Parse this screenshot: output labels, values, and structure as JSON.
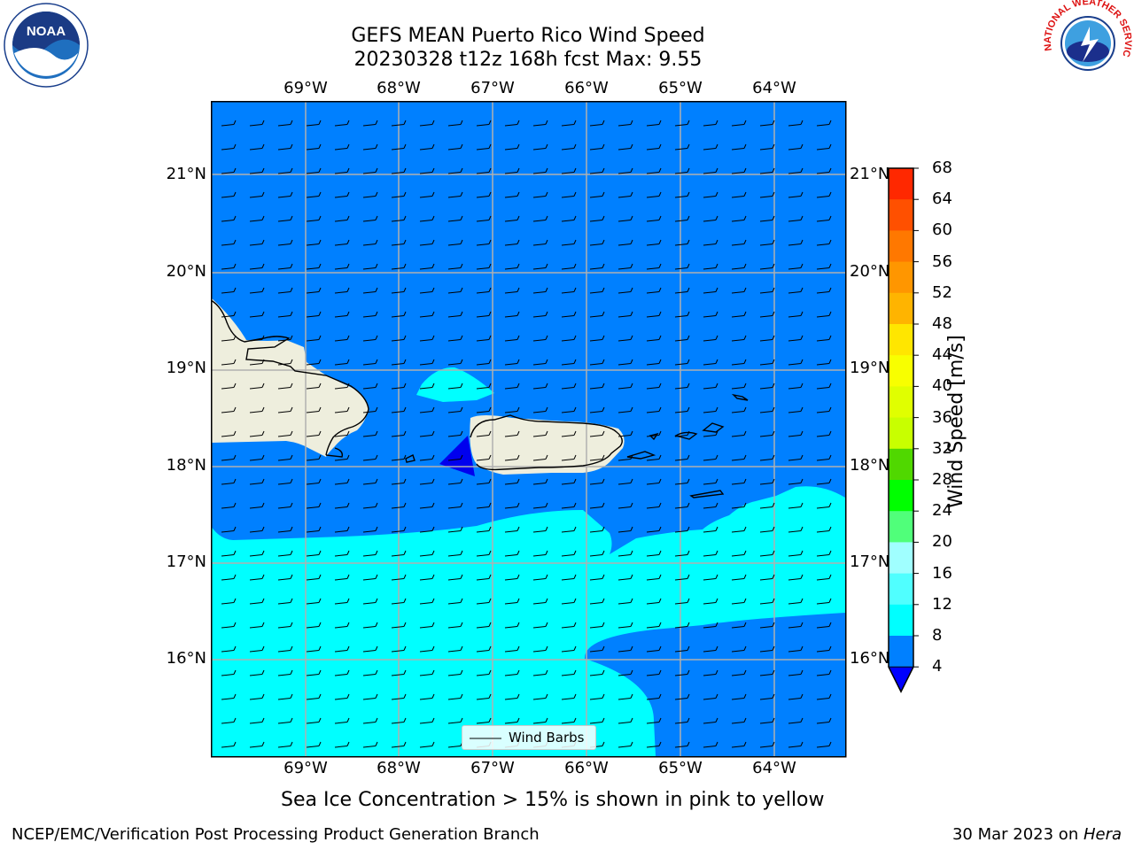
{
  "title": {
    "line1": "GEFS MEAN Puerto Rico Wind Speed",
    "line2": "20230328 t12z 168h fcst   Max: 9.55"
  },
  "logos": {
    "left": {
      "icon": "noaa-logo-icon",
      "text": "NOAA"
    },
    "right": {
      "icon": "nws-logo-icon",
      "text": "NATIONAL WEATHER SERVICE"
    }
  },
  "map": {
    "lon_labels": [
      "69°W",
      "68°W",
      "67°W",
      "66°W",
      "65°W",
      "64°W"
    ],
    "lat_labels": [
      "21°N",
      "20°N",
      "19°N",
      "18°N",
      "17°N",
      "16°N"
    ],
    "colors": {
      "land": "#eeeedd",
      "speed_4_8": "#0080ff",
      "speed_8_12": "#00ffff",
      "speed_below_4": "#0000ee",
      "grid": "#b0b0b0"
    },
    "legend_label": "Wind Barbs"
  },
  "colorbar": {
    "label": "Wind Speed [m/s]",
    "ticks": [
      "68",
      "64",
      "60",
      "56",
      "52",
      "48",
      "44",
      "40",
      "36",
      "32",
      "28",
      "24",
      "20",
      "16",
      "12",
      "8",
      "4"
    ],
    "colors": [
      "#ff0000",
      "#ff2800",
      "#ff5000",
      "#ff7800",
      "#ff9600",
      "#ffb400",
      "#ffe600",
      "#f8ff00",
      "#e0ff00",
      "#c8ff00",
      "#50d800",
      "#00ff00",
      "#50ff7a",
      "#a0ffff",
      "#50ffff",
      "#00ffff",
      "#0080ff"
    ],
    "under_color": "#0000ff"
  },
  "subtitle": "Sea Ice Concentration > 15% is shown in pink to yellow",
  "footer": {
    "left": "NCEP/EMC/Verification Post Processing Product Generation Branch",
    "right_date": "30 Mar 2023 on ",
    "right_machine": "Hera"
  }
}
